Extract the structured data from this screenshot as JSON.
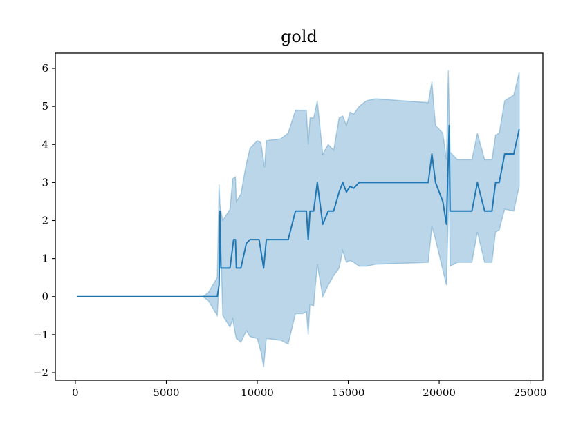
{
  "chart_data": {
    "type": "line",
    "title": "gold",
    "xlabel": "",
    "ylabel": "",
    "xlim": [
      -1100,
      25700
    ],
    "ylim": [
      -2.2,
      6.4
    ],
    "xticks": [
      0,
      5000,
      10000,
      15000,
      20000,
      25000
    ],
    "xtick_labels": [
      "0",
      "5000",
      "10000",
      "15000",
      "20000",
      "25000"
    ],
    "yticks": [
      -2,
      -1,
      0,
      1,
      2,
      3,
      4,
      5,
      6
    ],
    "ytick_labels": [
      "−2",
      "−1",
      "0",
      "1",
      "2",
      "3",
      "4",
      "5",
      "6"
    ],
    "grid": false,
    "colors": {
      "line": "#1f77b4",
      "band": "#1f77b4"
    },
    "series": [
      {
        "mean": [
          [
            100,
            0
          ],
          [
            7000,
            0
          ],
          [
            7800,
            0
          ],
          [
            7900,
            0.3
          ],
          [
            7950,
            2.25
          ],
          [
            8000,
            0.75
          ],
          [
            8500,
            0.75
          ],
          [
            8700,
            1.5
          ],
          [
            8800,
            1.5
          ],
          [
            8850,
            0.75
          ],
          [
            9100,
            0.75
          ],
          [
            9400,
            1.4
          ],
          [
            9600,
            1.5
          ],
          [
            10100,
            1.5
          ],
          [
            10350,
            0.75
          ],
          [
            10500,
            1.5
          ],
          [
            11300,
            1.5
          ],
          [
            11700,
            1.5
          ],
          [
            12100,
            2.25
          ],
          [
            12700,
            2.25
          ],
          [
            12800,
            1.5
          ],
          [
            12900,
            2.25
          ],
          [
            13100,
            2.25
          ],
          [
            13300,
            3.0
          ],
          [
            13600,
            1.9
          ],
          [
            13900,
            2.25
          ],
          [
            14200,
            2.25
          ],
          [
            14500,
            2.75
          ],
          [
            14700,
            3.0
          ],
          [
            14900,
            2.75
          ],
          [
            15100,
            2.9
          ],
          [
            15300,
            2.85
          ],
          [
            15600,
            3.0
          ],
          [
            16000,
            3.0
          ],
          [
            19400,
            3.0
          ],
          [
            19600,
            3.75
          ],
          [
            19800,
            3.0
          ],
          [
            20200,
            2.5
          ],
          [
            20400,
            1.9
          ],
          [
            20550,
            4.5
          ],
          [
            20600,
            2.25
          ],
          [
            21800,
            2.25
          ],
          [
            22100,
            3.0
          ],
          [
            22500,
            2.25
          ],
          [
            22900,
            2.25
          ],
          [
            23100,
            3.0
          ],
          [
            23300,
            3.0
          ],
          [
            23600,
            3.75
          ],
          [
            24100,
            3.75
          ],
          [
            24400,
            4.4
          ]
        ],
        "upper": [
          [
            100,
            0
          ],
          [
            7000,
            0
          ],
          [
            7300,
            0.1
          ],
          [
            7800,
            0.5
          ],
          [
            7900,
            2.95
          ],
          [
            7950,
            2.4
          ],
          [
            8100,
            2.0
          ],
          [
            8500,
            2.3
          ],
          [
            8650,
            3.1
          ],
          [
            8800,
            3.15
          ],
          [
            8850,
            2.5
          ],
          [
            9100,
            2.7
          ],
          [
            9400,
            3.5
          ],
          [
            9600,
            3.9
          ],
          [
            10000,
            4.1
          ],
          [
            10200,
            4.05
          ],
          [
            10400,
            3.4
          ],
          [
            10500,
            4.1
          ],
          [
            11300,
            4.15
          ],
          [
            11700,
            4.3
          ],
          [
            12100,
            4.9
          ],
          [
            12500,
            4.9
          ],
          [
            12700,
            4.9
          ],
          [
            12800,
            4.0
          ],
          [
            12900,
            4.7
          ],
          [
            13100,
            4.7
          ],
          [
            13300,
            5.15
          ],
          [
            13600,
            3.75
          ],
          [
            13900,
            4.0
          ],
          [
            14200,
            3.85
          ],
          [
            14500,
            4.7
          ],
          [
            14700,
            4.75
          ],
          [
            14900,
            4.5
          ],
          [
            15100,
            4.85
          ],
          [
            15300,
            4.8
          ],
          [
            15600,
            5.0
          ],
          [
            16000,
            5.15
          ],
          [
            16500,
            5.2
          ],
          [
            19400,
            5.1
          ],
          [
            19600,
            5.65
          ],
          [
            19800,
            4.5
          ],
          [
            20200,
            4.3
          ],
          [
            20400,
            3.6
          ],
          [
            20500,
            5.95
          ],
          [
            20600,
            3.8
          ],
          [
            21000,
            3.6
          ],
          [
            21800,
            3.6
          ],
          [
            22100,
            4.3
          ],
          [
            22500,
            3.6
          ],
          [
            22900,
            3.6
          ],
          [
            23100,
            4.25
          ],
          [
            23300,
            4.3
          ],
          [
            23600,
            5.15
          ],
          [
            24100,
            5.3
          ],
          [
            24400,
            5.9
          ]
        ],
        "lower": [
          [
            100,
            0
          ],
          [
            7000,
            0
          ],
          [
            7300,
            -0.1
          ],
          [
            7800,
            -0.5
          ],
          [
            7900,
            0.3
          ],
          [
            7950,
            2.2
          ],
          [
            8100,
            -0.5
          ],
          [
            8500,
            -0.8
          ],
          [
            8650,
            -0.6
          ],
          [
            8800,
            -1.0
          ],
          [
            8850,
            -1.1
          ],
          [
            9100,
            -1.2
          ],
          [
            9400,
            -0.9
          ],
          [
            9600,
            -1.05
          ],
          [
            10000,
            -1.1
          ],
          [
            10200,
            -1.45
          ],
          [
            10350,
            -1.85
          ],
          [
            10500,
            -1.1
          ],
          [
            11300,
            -1.15
          ],
          [
            11700,
            -1.25
          ],
          [
            12100,
            -0.45
          ],
          [
            12500,
            -0.45
          ],
          [
            12700,
            -0.4
          ],
          [
            12800,
            -1.0
          ],
          [
            12900,
            -0.2
          ],
          [
            13100,
            -0.25
          ],
          [
            13300,
            0.85
          ],
          [
            13600,
            0.0
          ],
          [
            13900,
            0.3
          ],
          [
            14200,
            0.55
          ],
          [
            14500,
            0.75
          ],
          [
            14700,
            1.2
          ],
          [
            14900,
            0.9
          ],
          [
            15100,
            0.95
          ],
          [
            15300,
            0.9
          ],
          [
            15600,
            0.8
          ],
          [
            16000,
            0.8
          ],
          [
            16500,
            0.85
          ],
          [
            19400,
            0.9
          ],
          [
            19600,
            1.85
          ],
          [
            19800,
            1.5
          ],
          [
            20200,
            0.7
          ],
          [
            20400,
            0.3
          ],
          [
            20550,
            3.05
          ],
          [
            20600,
            0.8
          ],
          [
            21000,
            0.9
          ],
          [
            21800,
            0.9
          ],
          [
            22100,
            1.7
          ],
          [
            22500,
            0.9
          ],
          [
            22900,
            0.9
          ],
          [
            23100,
            1.7
          ],
          [
            23300,
            1.75
          ],
          [
            23600,
            2.3
          ],
          [
            24100,
            2.25
          ],
          [
            24400,
            2.9
          ]
        ]
      }
    ]
  }
}
